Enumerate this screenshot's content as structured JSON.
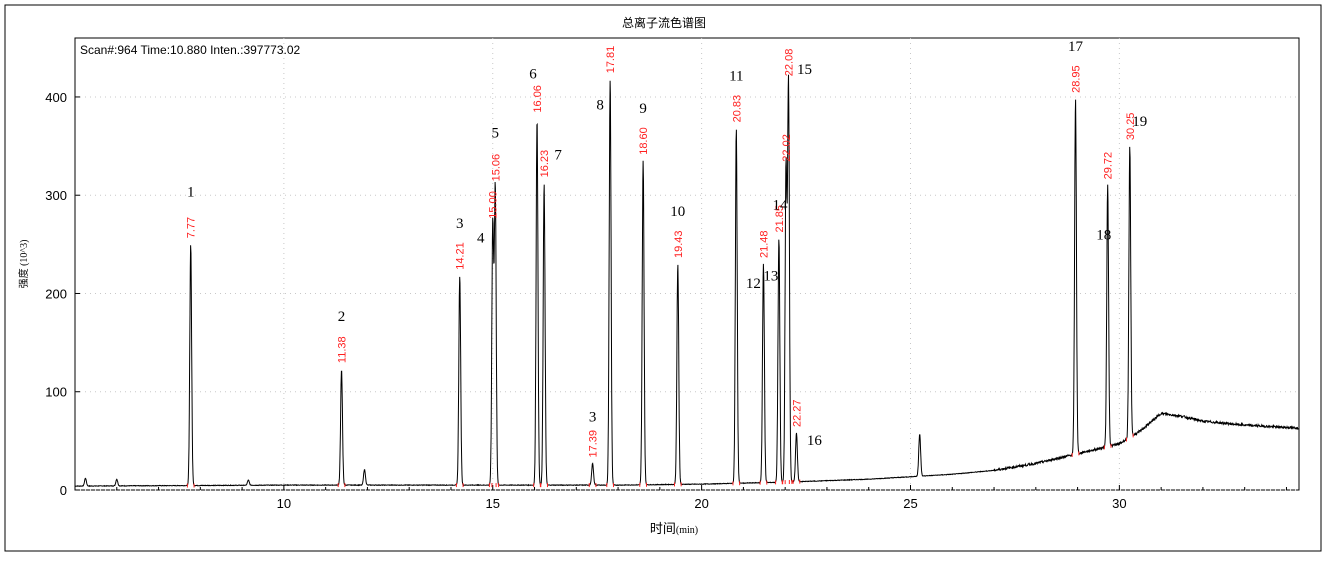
{
  "window": {
    "title": "总离子流色谱图",
    "header_info": "Scan#:964  Time:10.880  Inten.:397773.02"
  },
  "chart_data": {
    "type": "line",
    "title": "总离子流色谱图",
    "xlabel": "时间",
    "xlabel_unit": "(min)",
    "ylabel": "强度 (10^3)",
    "xlim": [
      5.0,
      34.3
    ],
    "ylim": [
      0,
      460
    ],
    "x_ticks": [
      10,
      15,
      20,
      25,
      30
    ],
    "y_ticks": [
      0,
      100,
      200,
      300,
      400
    ],
    "grid": "dotted",
    "baseline": [
      [
        5.0,
        4
      ],
      [
        10.0,
        5
      ],
      [
        15.0,
        5
      ],
      [
        18.0,
        5
      ],
      [
        20.0,
        6
      ],
      [
        22.0,
        8
      ],
      [
        24.0,
        11
      ],
      [
        26.0,
        16
      ],
      [
        27.0,
        20
      ],
      [
        28.0,
        27
      ],
      [
        28.5,
        32
      ],
      [
        29.0,
        37
      ],
      [
        30.0,
        47
      ],
      [
        30.5,
        60
      ],
      [
        31.0,
        78
      ],
      [
        31.5,
        75
      ],
      [
        32.0,
        70
      ],
      [
        33.0,
        66
      ],
      [
        34.3,
        63
      ]
    ],
    "peaks": [
      {
        "number": "1",
        "rt": 7.77,
        "height": 250,
        "rt_label": "7.77"
      },
      {
        "number": "2",
        "rt": 11.38,
        "height": 123,
        "rt_label": "11.38"
      },
      {
        "number": "3",
        "rt": 14.21,
        "height": 218,
        "rt_label": "14.21"
      },
      {
        "number": "4",
        "rt": 15.0,
        "height": 270,
        "rt_label": "15.00"
      },
      {
        "number": "5",
        "rt": 15.06,
        "height": 308,
        "rt_label": "15.06"
      },
      {
        "number": "6",
        "rt": 16.06,
        "height": 378,
        "rt_label": "16.06"
      },
      {
        "number": "7",
        "rt": 16.23,
        "height": 312,
        "rt_label": "16.23"
      },
      {
        "number": "3",
        "rt": 17.39,
        "height": 27,
        "rt_label": "17.39"
      },
      {
        "number": "8",
        "rt": 17.81,
        "height": 418,
        "rt_label": "17.81"
      },
      {
        "number": "9",
        "rt": 18.6,
        "height": 335,
        "rt_label": "18.60"
      },
      {
        "number": "10",
        "rt": 19.43,
        "height": 230,
        "rt_label": "19.43"
      },
      {
        "number": "11",
        "rt": 20.83,
        "height": 368,
        "rt_label": "20.83"
      },
      {
        "number": "12",
        "rt": 21.48,
        "height": 230,
        "rt_label": "21.48"
      },
      {
        "number": "13",
        "rt": 21.85,
        "height": 256,
        "rt_label": "21.85"
      },
      {
        "number": "14",
        "rt": 22.02,
        "height": 328,
        "rt_label": "22.02"
      },
      {
        "number": "15",
        "rt": 22.08,
        "height": 415,
        "rt_label": "22.08"
      },
      {
        "number": "16",
        "rt": 22.27,
        "height": 58,
        "rt_label": "22.27"
      },
      {
        "number": "17",
        "rt": 28.95,
        "height": 398,
        "rt_label": "28.95"
      },
      {
        "number": "18",
        "rt": 29.72,
        "height": 310,
        "rt_label": "29.72"
      },
      {
        "number": "19",
        "rt": 30.25,
        "height": 350,
        "rt_label": "30.25"
      }
    ],
    "minor_peaks": [
      {
        "rt": 5.25,
        "height": 12
      },
      {
        "rt": 6.0,
        "height": 11
      },
      {
        "rt": 9.15,
        "height": 10
      },
      {
        "rt": 11.93,
        "height": 21
      },
      {
        "rt": 25.22,
        "height": 57
      }
    ],
    "colors": {
      "trace": "#000000",
      "rt_label": "#ff2020",
      "peak_number": "#000000",
      "axis": "#000000",
      "grid": "#c8c8c8",
      "background": "#ffffff"
    }
  }
}
